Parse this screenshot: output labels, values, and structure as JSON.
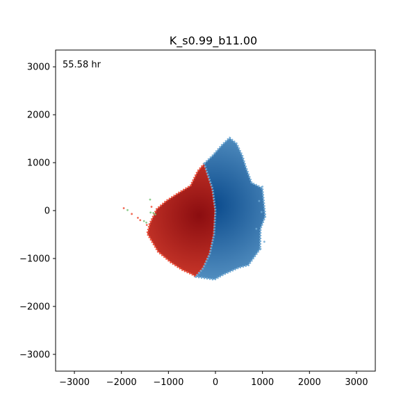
{
  "chart_data": {
    "type": "scatter",
    "title": "K_s0.99_b11.00",
    "annotation": "55.58 hr",
    "xlabel": "",
    "ylabel": "",
    "xlim": [
      -3400,
      3400
    ],
    "ylim": [
      -3350,
      3350
    ],
    "xticks": [
      -3000,
      -2000,
      -1000,
      0,
      1000,
      2000,
      3000
    ],
    "yticks": [
      -3000,
      -2000,
      -1000,
      0,
      1000,
      2000,
      3000
    ],
    "xtick_labels": [
      "−3000",
      "−2000",
      "−1000",
      "0",
      "1000",
      "2000",
      "3000"
    ],
    "ytick_labels": [
      "−3000",
      "−2000",
      "−1000",
      "0",
      "1000",
      "2000",
      "3000"
    ],
    "grid": false,
    "colors": {
      "red_dark": "#8b0d10",
      "red_light": "#f0513a",
      "blue_dark": "#0a4a8c",
      "blue_light": "#6fa9d4",
      "green": "#7cc47a"
    },
    "regions": [
      {
        "color_group": "red",
        "outline": [
          [
            -240,
            980
          ],
          [
            -380,
            820
          ],
          [
            -530,
            520
          ],
          [
            -800,
            360
          ],
          [
            -1050,
            200
          ],
          [
            -1250,
            30
          ],
          [
            -1400,
            -280
          ],
          [
            -1450,
            -480
          ],
          [
            -1220,
            -860
          ],
          [
            -950,
            -1080
          ],
          [
            -700,
            -1240
          ],
          [
            -500,
            -1330
          ],
          [
            -420,
            -1380
          ],
          [
            -260,
            -1200
          ],
          [
            -120,
            -900
          ],
          [
            -30,
            -500
          ],
          [
            0,
            0
          ],
          [
            -60,
            450
          ]
        ],
        "core": [
          -350,
          -100
        ]
      },
      {
        "color_group": "blue",
        "outline": [
          [
            -240,
            980
          ],
          [
            -60,
            1150
          ],
          [
            150,
            1380
          ],
          [
            300,
            1520
          ],
          [
            450,
            1400
          ],
          [
            570,
            1150
          ],
          [
            650,
            900
          ],
          [
            770,
            580
          ],
          [
            1000,
            470
          ],
          [
            1060,
            -120
          ],
          [
            960,
            -380
          ],
          [
            950,
            -800
          ],
          [
            700,
            -1140
          ],
          [
            500,
            -1190
          ],
          [
            180,
            -1330
          ],
          [
            -20,
            -1440
          ],
          [
            -420,
            -1380
          ],
          [
            -260,
            -1200
          ],
          [
            -120,
            -900
          ],
          [
            -30,
            -500
          ],
          [
            0,
            0
          ],
          [
            -60,
            450
          ]
        ],
        "core": [
          -60,
          100
        ]
      }
    ],
    "outlier_points": [
      {
        "x": -1950,
        "y": 50,
        "color_group": "red"
      },
      {
        "x": -1870,
        "y": 10,
        "color_group": "green"
      },
      {
        "x": -1780,
        "y": -70,
        "color_group": "red"
      },
      {
        "x": -1650,
        "y": -150,
        "color_group": "red"
      },
      {
        "x": -1600,
        "y": -200,
        "color_group": "red"
      },
      {
        "x": -1520,
        "y": -220,
        "color_group": "green"
      },
      {
        "x": -1470,
        "y": -250,
        "color_group": "green"
      },
      {
        "x": -1380,
        "y": -40,
        "color_group": "green"
      },
      {
        "x": -1320,
        "y": -50,
        "color_group": "green"
      },
      {
        "x": -1280,
        "y": -80,
        "color_group": "green"
      },
      {
        "x": -1390,
        "y": 230,
        "color_group": "green"
      },
      {
        "x": -1360,
        "y": 80,
        "color_group": "red"
      },
      {
        "x": -1460,
        "y": -300,
        "color_group": "red"
      },
      {
        "x": 1000,
        "y": 500,
        "color_group": "blue"
      },
      {
        "x": 930,
        "y": 200,
        "color_group": "blue"
      },
      {
        "x": 980,
        "y": -30,
        "color_group": "blue"
      },
      {
        "x": 1040,
        "y": -650,
        "color_group": "blue"
      },
      {
        "x": 960,
        "y": -800,
        "color_group": "blue"
      },
      {
        "x": 870,
        "y": -380,
        "color_group": "blue"
      }
    ]
  }
}
